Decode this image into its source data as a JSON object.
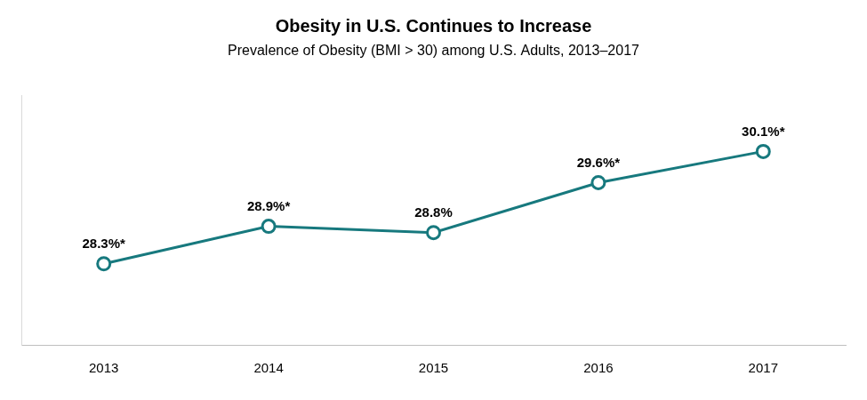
{
  "chart_data": {
    "type": "line",
    "title": "Obesity in U.S. Continues to Increase",
    "subtitle": "Prevalence of Obesity (BMI > 30) among U.S. Adults, 2013–2017",
    "categories": [
      "2013",
      "2014",
      "2015",
      "2016",
      "2017"
    ],
    "values": [
      28.3,
      28.9,
      28.8,
      29.6,
      30.1
    ],
    "value_labels": [
      "28.3%*",
      "28.9%*",
      "28.8%",
      "29.6%*",
      "30.1%*"
    ],
    "color": "#17797e",
    "marker": "circle",
    "line_style": "solid",
    "ylim": [
      27,
      31
    ],
    "grid": false,
    "data_labels": true,
    "tick_labels": "x"
  }
}
